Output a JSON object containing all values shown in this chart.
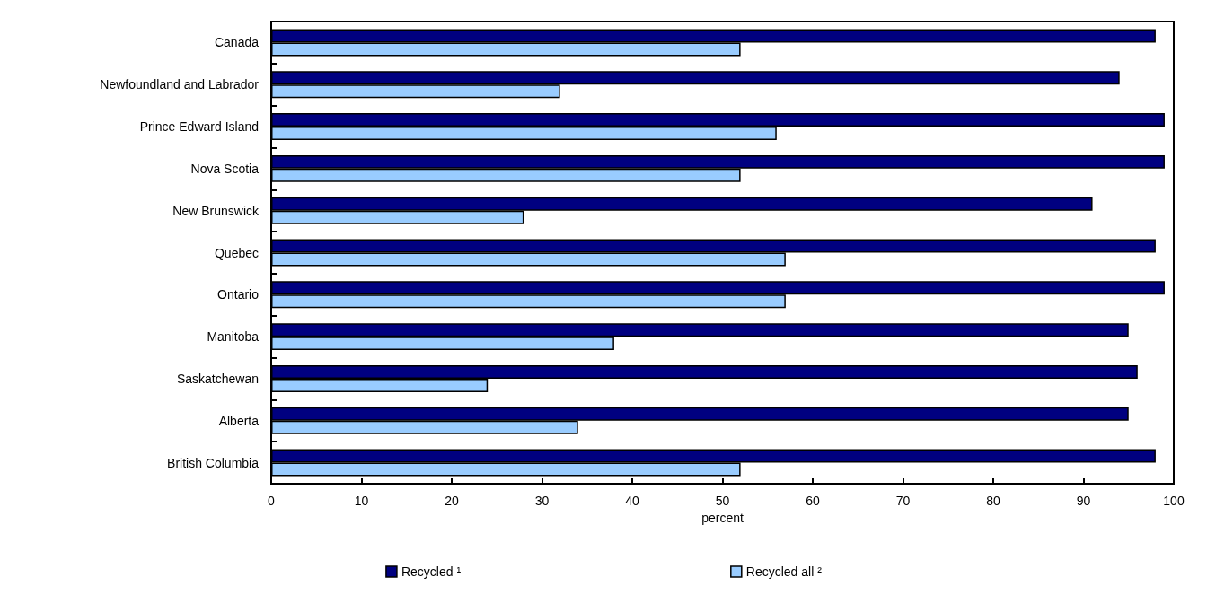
{
  "chart_data": {
    "type": "bar",
    "orientation": "horizontal",
    "xlabel": "percent",
    "categories": [
      "Canada",
      "Newfoundland and Labrador",
      "Prince Edward Island",
      "Nova Scotia",
      "New Brunswick",
      "Quebec",
      "Ontario",
      "Manitoba",
      "Saskatchewan",
      "Alberta",
      "British Columbia"
    ],
    "series": [
      {
        "name": "Recycled ¹",
        "color": "#000080",
        "values": [
          98,
          94,
          99,
          99,
          91,
          98,
          99,
          95,
          96,
          95,
          98
        ]
      },
      {
        "name": "Recycled all ²",
        "color": "#99ccff",
        "values": [
          52,
          32,
          56,
          52,
          28,
          57,
          57,
          38,
          24,
          34,
          52
        ]
      }
    ],
    "xlim": [
      0,
      100
    ],
    "xticks": [
      0,
      10,
      20,
      30,
      40,
      50,
      60,
      70,
      80,
      90,
      100
    ],
    "grid": false,
    "legend": "bottom"
  }
}
